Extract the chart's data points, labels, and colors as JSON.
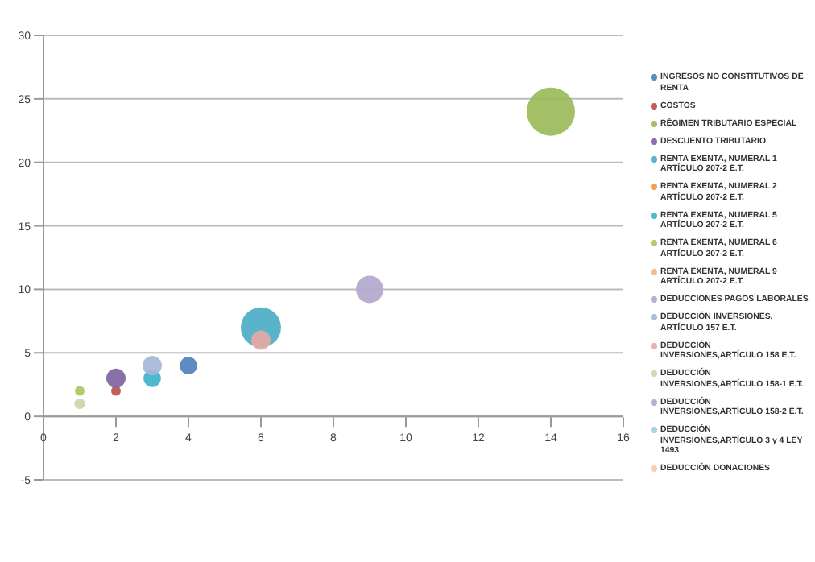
{
  "chart_data": {
    "type": "bubble",
    "xlim": [
      0,
      16
    ],
    "xticks": [
      0,
      2,
      4,
      6,
      8,
      10,
      12,
      14,
      16
    ],
    "ylim": [
      -5,
      30
    ],
    "yticks": [
      -5,
      0,
      5,
      10,
      15,
      20,
      25,
      30
    ],
    "grid": "y",
    "legend": "right",
    "series": [
      {
        "name": "INGRESOS NO CONSTITUTIVOS DE RENTA",
        "color": "#4f81bd",
        "x": [
          4
        ],
        "values": [
          4
        ],
        "sizes": [
          0.13
        ]
      },
      {
        "name": "COSTOS",
        "color": "#c0504d",
        "x": [
          2
        ],
        "values": [
          2
        ],
        "sizes": [
          0.04
        ]
      },
      {
        "name": "RÉGIMEN TRIBUTARIO ESPECIAL",
        "color": "#9bbb59",
        "x": [
          14
        ],
        "values": [
          24
        ],
        "sizes": [
          1
        ]
      },
      {
        "name": "DESCUENTO TRIBUTARIO",
        "color": "#8064a2",
        "x": [
          2
        ],
        "values": [
          3
        ],
        "sizes": [
          0.16
        ]
      },
      {
        "name": "RENTA EXENTA, NUMERAL 1 ARTÍCULO 207-2 E.T.",
        "color": "#4bacc6",
        "x": [
          6
        ],
        "values": [
          7
        ],
        "sizes": [
          0.69
        ]
      },
      {
        "name": "RENTA EXENTA, NUMERAL 2 ARTÍCULO 207-2 E.T.",
        "color": "#f79646",
        "x": [
          null
        ],
        "values": [
          null
        ],
        "sizes": [
          null
        ]
      },
      {
        "name": "RENTA EXENTA, NUMERAL 5 ARTÍCULO 207-2 E.T.",
        "color": "#3fb3c9",
        "x": [
          3
        ],
        "values": [
          3
        ],
        "sizes": [
          0.13
        ]
      },
      {
        "name": "RENTA EXENTA, NUMERAL 6 ARTÍCULO 207-2 E.T.",
        "color": "#a9c85f",
        "x": [
          1
        ],
        "values": [
          2
        ],
        "sizes": [
          0.04
        ]
      },
      {
        "name": "RENTA EXENTA, NUMERAL 9 ARTÍCULO 207-2 E.T.",
        "color": "#f9b27a",
        "x": [
          null
        ],
        "values": [
          null
        ],
        "sizes": [
          null
        ]
      },
      {
        "name": "DEDUCCIONES PAGOS LABORALES",
        "color": "#b3a8cc",
        "x": [
          9
        ],
        "values": [
          10
        ],
        "sizes": [
          0.32
        ]
      },
      {
        "name": "DEDUCCIÓN INVERSIONES, ARTÍCULO 157 E.T.",
        "color": "#a5b9d8",
        "x": [
          3
        ],
        "values": [
          4
        ],
        "sizes": [
          0.16
        ]
      },
      {
        "name": "DEDUCCIÓN INVERSIONES,ARTÍCULO 158 E.T.",
        "color": "#e6a9a3",
        "x": [
          6
        ],
        "values": [
          6
        ],
        "sizes": [
          0.16
        ]
      },
      {
        "name": "DEDUCCIÓN INVERSIONES,ARTÍCULO 158-1 E.T.",
        "color": "#c8d7a8",
        "x": [
          1
        ],
        "values": [
          1
        ],
        "sizes": [
          0.05
        ]
      },
      {
        "name": "DEDUCCIÓN INVERSIONES,ARTÍCULO 158-2 E.T.",
        "color": "#b7a6cf",
        "x": [
          null
        ],
        "values": [
          null
        ],
        "sizes": [
          null
        ]
      },
      {
        "name": "DEDUCCIÓN INVERSIONES,ARTÍCULO 3 y 4 LEY 1493",
        "color": "#9fd3e0",
        "x": [
          null
        ],
        "values": [
          null
        ],
        "sizes": [
          null
        ]
      },
      {
        "name": "DEDUCCIÓN DONACIONES",
        "color": "#fbc8a8",
        "x": [
          null
        ],
        "values": [
          null
        ],
        "sizes": [
          null
        ]
      }
    ]
  }
}
